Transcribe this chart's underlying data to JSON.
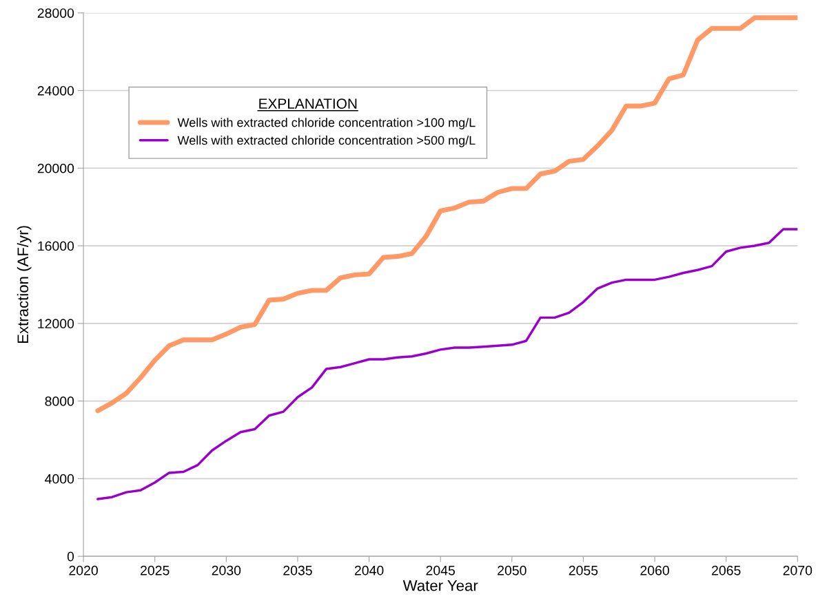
{
  "chart_data": {
    "type": "line",
    "xlabel": "Water Year",
    "ylabel": "Extraction (AF/yr)",
    "legend_title": "EXPLANATION",
    "x": [
      2021,
      2022,
      2023,
      2024,
      2025,
      2026,
      2027,
      2028,
      2029,
      2030,
      2031,
      2032,
      2033,
      2034,
      2035,
      2036,
      2037,
      2038,
      2039,
      2040,
      2041,
      2042,
      2043,
      2044,
      2045,
      2046,
      2047,
      2048,
      2049,
      2050,
      2051,
      2052,
      2053,
      2054,
      2055,
      2056,
      2057,
      2058,
      2059,
      2060,
      2061,
      2062,
      2063,
      2064,
      2065,
      2066,
      2067,
      2068,
      2069,
      2070
    ],
    "series": [
      {
        "name": "Wells with extracted chloride concentration >100 mg/L",
        "color": "#ff9966",
        "values": [
          7500,
          7900,
          8400,
          9200,
          10100,
          10850,
          11150,
          11150,
          11150,
          11450,
          11800,
          11950,
          13200,
          13250,
          13550,
          13700,
          13700,
          14350,
          14500,
          14550,
          15400,
          15450,
          15600,
          16500,
          17800,
          17950,
          18250,
          18300,
          18750,
          18950,
          18950,
          19700,
          19850,
          20350,
          20450,
          21150,
          21950,
          23200,
          23200,
          23350,
          24600,
          24800,
          26600,
          27200,
          27200,
          27200,
          27750,
          27750,
          27750,
          27750
        ]
      },
      {
        "name": "Wells with extracted chloride concentration >500 mg/L",
        "color": "#9900cc",
        "values": [
          2950,
          3050,
          3300,
          3400,
          3800,
          4300,
          4350,
          4700,
          5450,
          5950,
          6400,
          6550,
          7250,
          7450,
          8200,
          8700,
          9650,
          9750,
          9950,
          10150,
          10150,
          10250,
          10300,
          10450,
          10650,
          10750,
          10750,
          10800,
          10850,
          10900,
          11100,
          12300,
          12300,
          12550,
          13100,
          13800,
          14100,
          14250,
          14250,
          14250,
          14400,
          14600,
          14750,
          14950,
          15700,
          15900,
          16000,
          16150,
          16850,
          16850
        ]
      }
    ],
    "xlim": [
      2020,
      2070
    ],
    "xticks": [
      2020,
      2025,
      2030,
      2035,
      2040,
      2045,
      2050,
      2055,
      2060,
      2065,
      2070
    ],
    "ylim": [
      0,
      28000
    ],
    "yticks": [
      0,
      4000,
      8000,
      12000,
      16000,
      20000,
      24000,
      28000
    ],
    "grid": "y",
    "legend": "top left",
    "marker": "none",
    "line_style": "solid"
  }
}
